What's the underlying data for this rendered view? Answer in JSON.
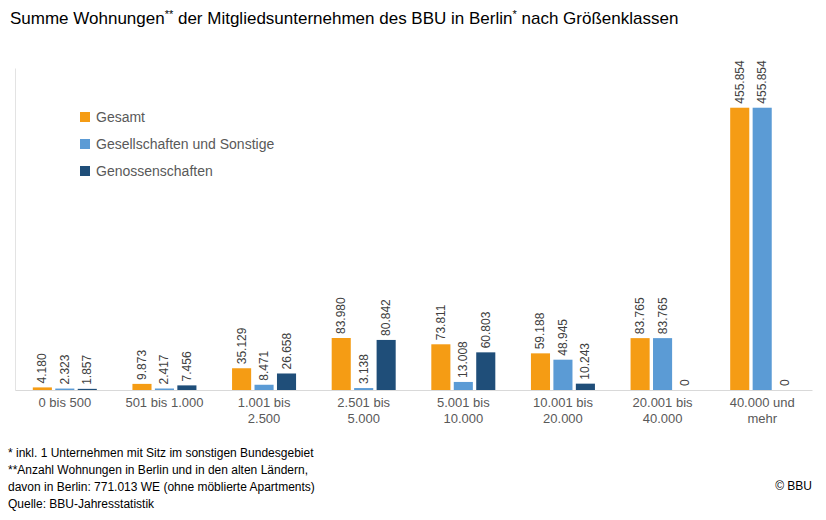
{
  "chart_data": {
    "type": "bar",
    "title": "Summe Wohnungen** der Mitgliedsunternehmen des BBU in Berlin* nach Größenklassen",
    "categories": [
      "0 bis 500",
      "501 bis 1.000",
      "1.001 bis 2.500",
      "2.501 bis 5.000",
      "5.001 bis 10.000",
      "10.001 bis 20.000",
      "20.001 bis 40.000",
      "40.000 und mehr"
    ],
    "series": [
      {
        "name": "Gesamt",
        "color": "#F59C14",
        "values": [
          4180,
          9873,
          35129,
          83980,
          73811,
          59188,
          83765,
          455854
        ],
        "value_labels": [
          "4.180",
          "9.873",
          "35.129",
          "83.980",
          "73.811",
          "59.188",
          "83.765",
          "455.854"
        ]
      },
      {
        "name": "Gesellschaften und Sonstige",
        "color": "#5B9BD5",
        "values": [
          2323,
          2417,
          8471,
          3138,
          13008,
          48945,
          83765,
          455854
        ],
        "value_labels": [
          "2.323",
          "2.417",
          "8.471",
          "3.138",
          "13.008",
          "48.945",
          "83.765",
          "455.854"
        ]
      },
      {
        "name": "Genossenschaften",
        "color": "#1F4E79",
        "values": [
          1857,
          7456,
          26658,
          80842,
          60803,
          10243,
          0,
          0
        ],
        "value_labels": [
          "1.857",
          "7.456",
          "26.658",
          "80.842",
          "60.803",
          "10.243",
          "0",
          "0"
        ]
      }
    ],
    "ylim": [
      0,
      520000
    ],
    "data_labels": true,
    "tick_labels": "x",
    "legend": "top-left",
    "annotations": [
      "* inkl. 1 Unternehmen mit Sitz im sonstigen Bundesgebiet",
      "**Anzahl Wohnungen in Berlin und in den alten Ländern,",
      "davon in Berlin: 771.013 WE (ohne möblierte Apartments)",
      "Quelle: BBU-Jahresstatistik",
      "© BBU"
    ]
  }
}
